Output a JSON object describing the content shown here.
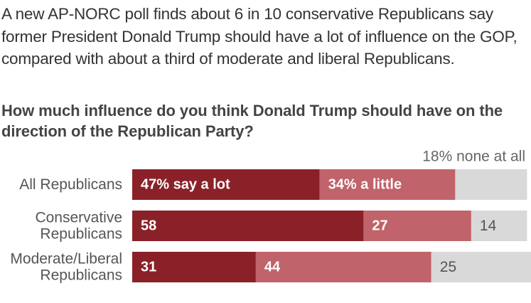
{
  "intro_text": "A new AP-NORC poll finds about 6 in 10 conservative Republicans say former President Donald Trump should have a lot of influence on the GOP, compared with about a third of moderate and liberal Republicans.",
  "colors": {
    "a_lot": "#8a2128",
    "a_little": "#c0636a",
    "none": "#d9d9d9",
    "label_on_dark": "#ffffff",
    "label_on_gray": "#555555",
    "text": "#333333"
  },
  "chart_data": {
    "type": "bar",
    "orientation": "horizontal",
    "stacked": true,
    "title": "How much influence do you think Donald Trump should have on the direction of the Republican Party?",
    "categories": [
      "All Republicans",
      "Conservative Republicans",
      "Moderate/Liberal Republicans"
    ],
    "category_lines": [
      [
        "All Republicans"
      ],
      [
        "Conservative",
        "Republicans"
      ],
      [
        "Moderate/Liberal",
        "Republicans"
      ]
    ],
    "series": [
      {
        "key": "a_lot",
        "values": [
          47,
          58,
          31
        ],
        "labels": [
          "47% say a lot",
          "58",
          "31"
        ]
      },
      {
        "key": "a_little",
        "values": [
          34,
          27,
          44
        ],
        "labels": [
          "34% a little",
          "27",
          "44"
        ]
      },
      {
        "key": "none",
        "values": [
          18,
          14,
          25
        ],
        "labels": [
          "",
          "14",
          "25"
        ]
      }
    ],
    "annotations": [
      {
        "text": "18% none at all",
        "category_index": 0,
        "series_key": "none"
      }
    ],
    "xlim": [
      0,
      100
    ]
  }
}
